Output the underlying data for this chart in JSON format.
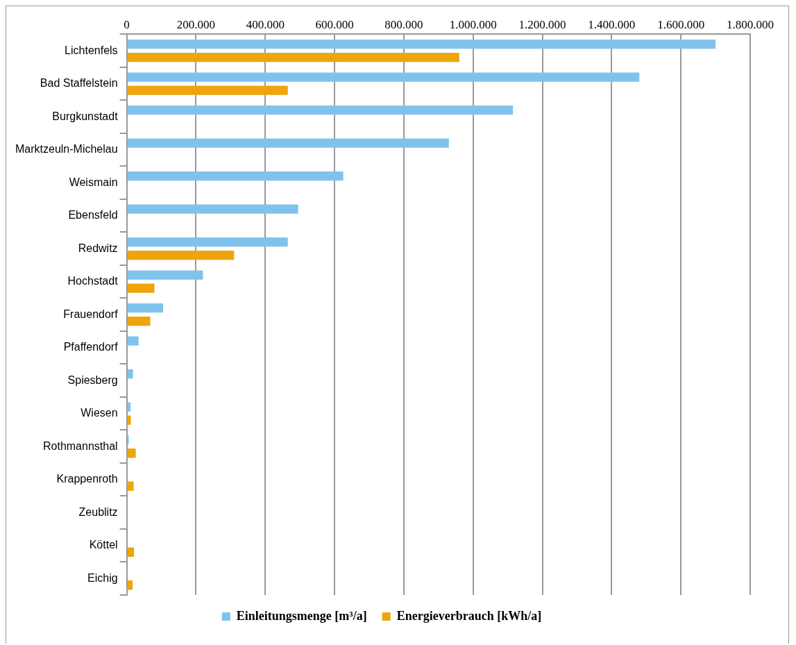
{
  "chart_data": {
    "type": "bar",
    "orientation": "horizontal",
    "categories": [
      "Lichtenfels",
      "Bad Staffelstein",
      "Burgkunstadt",
      "Marktzeuln-Michelau",
      "Weismain",
      "Ebensfeld",
      "Redwitz",
      "Hochstadt",
      "Frauendorf",
      "Pfaffendorf",
      "Spiesberg",
      "Wiesen",
      "Rothmannsthal",
      "Krappenroth",
      "Zeublitz",
      "Köttel",
      "Eichig"
    ],
    "series": [
      {
        "name": "Einleitungsmenge [m³/a]",
        "color": "#7fc3ec",
        "values": [
          1700000,
          1480000,
          1115000,
          930000,
          625000,
          495000,
          465000,
          220000,
          105000,
          34000,
          18000,
          11000,
          6000,
          null,
          null,
          null,
          null
        ]
      },
      {
        "name": "Energieverbrauch [kWh/a]",
        "color": "#eea50c",
        "values": [
          960000,
          465000,
          null,
          null,
          null,
          null,
          310000,
          80000,
          68000,
          null,
          null,
          12000,
          26000,
          20000,
          null,
          21000,
          17000
        ]
      }
    ],
    "xlim": [
      0,
      1800000
    ],
    "xticks": [
      0,
      {
        "value": 200000,
        "label": "200.000"
      },
      {
        "value": 400000,
        "label": "400.000"
      },
      {
        "value": 600000,
        "label": "600.000"
      },
      {
        "value": 800000,
        "label": "800.000"
      },
      {
        "value": 1000000,
        "label": "1.000.000"
      },
      {
        "value": 1200000,
        "label": "1.200.000"
      },
      {
        "value": 1400000,
        "label": "1.400.000"
      },
      {
        "value": 1600000,
        "label": "1.600.000"
      },
      {
        "value": 1800000,
        "label": "1.800.000"
      }
    ],
    "grid": "x",
    "legend": "bottom"
  }
}
